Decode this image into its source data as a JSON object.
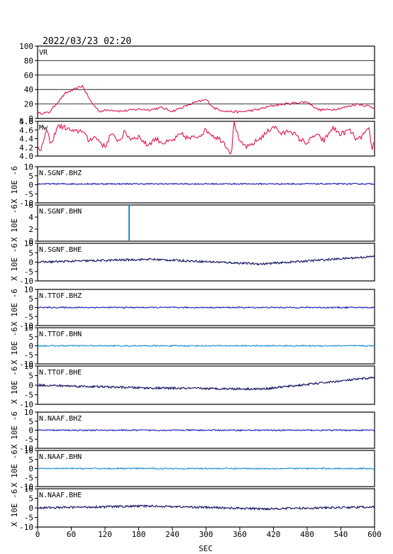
{
  "header": {
    "datetime": "2022/03/23  02:20"
  },
  "chart_data": {
    "type": "line",
    "xlabel": "SEC",
    "xlim": [
      0,
      600
    ],
    "xticks": [
      0,
      60,
      120,
      180,
      240,
      300,
      360,
      420,
      480,
      540,
      600
    ],
    "panels": [
      {
        "id": "vr",
        "label": "VR",
        "ylim": [
          0,
          100
        ],
        "yticks": [
          0,
          20,
          40,
          60,
          80,
          100
        ],
        "grid": true,
        "color": "#e0144c",
        "series": [
          {
            "x": 0,
            "y": 7
          },
          {
            "x": 20,
            "y": 8
          },
          {
            "x": 35,
            "y": 22
          },
          {
            "x": 50,
            "y": 35
          },
          {
            "x": 65,
            "y": 40
          },
          {
            "x": 80,
            "y": 45
          },
          {
            "x": 95,
            "y": 23
          },
          {
            "x": 110,
            "y": 10
          },
          {
            "x": 130,
            "y": 12
          },
          {
            "x": 150,
            "y": 10
          },
          {
            "x": 180,
            "y": 13
          },
          {
            "x": 200,
            "y": 12
          },
          {
            "x": 220,
            "y": 15
          },
          {
            "x": 240,
            "y": 10
          },
          {
            "x": 260,
            "y": 16
          },
          {
            "x": 280,
            "y": 22
          },
          {
            "x": 300,
            "y": 26
          },
          {
            "x": 315,
            "y": 14
          },
          {
            "x": 335,
            "y": 10
          },
          {
            "x": 360,
            "y": 9
          },
          {
            "x": 390,
            "y": 12
          },
          {
            "x": 420,
            "y": 18
          },
          {
            "x": 440,
            "y": 20
          },
          {
            "x": 465,
            "y": 22
          },
          {
            "x": 480,
            "y": 23
          },
          {
            "x": 500,
            "y": 12
          },
          {
            "x": 520,
            "y": 12
          },
          {
            "x": 545,
            "y": 15
          },
          {
            "x": 570,
            "y": 20
          },
          {
            "x": 590,
            "y": 17
          },
          {
            "x": 600,
            "y": 14
          }
        ]
      },
      {
        "id": "mw",
        "label": "Mw",
        "ylim": [
          4.0,
          4.8
        ],
        "yticks": [
          4.0,
          4.2,
          4.4,
          4.6,
          4.8
        ],
        "ytick_labels": [
          "4.0",
          "4.2",
          "4.4",
          "4.6",
          "4.8"
        ],
        "extra_tick_label": "5.0",
        "grid": false,
        "color": "#e0144c",
        "series": [
          {
            "x": 0,
            "y": 4.3
          },
          {
            "x": 5,
            "y": 4.05
          },
          {
            "x": 15,
            "y": 4.6
          },
          {
            "x": 25,
            "y": 4.25
          },
          {
            "x": 35,
            "y": 4.7
          },
          {
            "x": 50,
            "y": 4.65
          },
          {
            "x": 65,
            "y": 4.55
          },
          {
            "x": 80,
            "y": 4.6
          },
          {
            "x": 90,
            "y": 4.35
          },
          {
            "x": 100,
            "y": 4.45
          },
          {
            "x": 110,
            "y": 4.35
          },
          {
            "x": 120,
            "y": 4.2
          },
          {
            "x": 130,
            "y": 4.5
          },
          {
            "x": 145,
            "y": 4.35
          },
          {
            "x": 155,
            "y": 4.55
          },
          {
            "x": 165,
            "y": 4.4
          },
          {
            "x": 180,
            "y": 4.45
          },
          {
            "x": 195,
            "y": 4.25
          },
          {
            "x": 210,
            "y": 4.4
          },
          {
            "x": 225,
            "y": 4.3
          },
          {
            "x": 240,
            "y": 4.35
          },
          {
            "x": 255,
            "y": 4.5
          },
          {
            "x": 270,
            "y": 4.4
          },
          {
            "x": 285,
            "y": 4.45
          },
          {
            "x": 300,
            "y": 4.6
          },
          {
            "x": 315,
            "y": 4.45
          },
          {
            "x": 330,
            "y": 4.35
          },
          {
            "x": 345,
            "y": 4.05
          },
          {
            "x": 350,
            "y": 4.8
          },
          {
            "x": 360,
            "y": 4.3
          },
          {
            "x": 375,
            "y": 4.2
          },
          {
            "x": 390,
            "y": 4.35
          },
          {
            "x": 405,
            "y": 4.5
          },
          {
            "x": 420,
            "y": 4.7
          },
          {
            "x": 435,
            "y": 4.5
          },
          {
            "x": 450,
            "y": 4.6
          },
          {
            "x": 465,
            "y": 4.4
          },
          {
            "x": 480,
            "y": 4.3
          },
          {
            "x": 495,
            "y": 4.5
          },
          {
            "x": 510,
            "y": 4.35
          },
          {
            "x": 525,
            "y": 4.65
          },
          {
            "x": 540,
            "y": 4.5
          },
          {
            "x": 555,
            "y": 4.6
          },
          {
            "x": 570,
            "y": 4.35
          },
          {
            "x": 580,
            "y": 4.5
          },
          {
            "x": 590,
            "y": 4.6
          },
          {
            "x": 595,
            "y": 4.15
          },
          {
            "x": 600,
            "y": 4.35
          }
        ]
      },
      {
        "id": "sgnf-bhz",
        "label": "N.SGNF.BHZ",
        "ylabel": "X 10E -6",
        "ylim": [
          -10,
          10
        ],
        "yticks": [
          -10,
          -5,
          0,
          5,
          10
        ],
        "color": "#1a1ab8",
        "trace": "flat",
        "series": [
          {
            "x": 0,
            "y": 0.5
          },
          {
            "x": 600,
            "y": 0.5
          }
        ]
      },
      {
        "id": "sgnf-bhn",
        "label": "N.SGNF.BHN",
        "ylabel": "X 10E -6",
        "ylim": [
          0,
          6
        ],
        "yticks": [
          0,
          2,
          4,
          6
        ],
        "color": "#1a8ad4",
        "trace": "spike",
        "series": [
          {
            "x": 163,
            "y": 0
          },
          {
            "x": 163,
            "y": 6
          }
        ]
      },
      {
        "id": "sgnf-bhe",
        "label": "N.SGNF.BHE",
        "ylabel": "X 10E -6",
        "ylim": [
          -10,
          10
        ],
        "yticks": [
          -10,
          -5,
          0,
          5,
          10
        ],
        "color": "#0d0d5e",
        "trace": "wander",
        "series": [
          {
            "x": 0,
            "y": 0
          },
          {
            "x": 200,
            "y": 1.5
          },
          {
            "x": 400,
            "y": -1
          },
          {
            "x": 600,
            "y": 3
          }
        ]
      },
      {
        "id": "ttof-bhz",
        "label": "N.TTOF.BHZ",
        "ylabel": "X 10E -6",
        "ylim": [
          -10,
          10
        ],
        "yticks": [
          -10,
          -5,
          0,
          5,
          10
        ],
        "color": "#1a1ab8",
        "trace": "flat",
        "series": [
          {
            "x": 0,
            "y": 0
          },
          {
            "x": 600,
            "y": 0
          }
        ]
      },
      {
        "id": "ttof-bhn",
        "label": "N.TTOF.BHN",
        "ylabel": "X 10E -6",
        "ylim": [
          -10,
          10
        ],
        "yticks": [
          -10,
          -5,
          0,
          5,
          10
        ],
        "color": "#1a8ad4",
        "trace": "flat",
        "series": [
          {
            "x": 0,
            "y": 0
          },
          {
            "x": 600,
            "y": 0
          }
        ]
      },
      {
        "id": "ttof-bhe",
        "label": "N.TTOF.BHE",
        "ylabel": "X 10E -6",
        "ylim": [
          -10,
          10
        ],
        "yticks": [
          -10,
          -5,
          0,
          5,
          10
        ],
        "color": "#0d0d5e",
        "trace": "wander",
        "series": [
          {
            "x": 0,
            "y": 0
          },
          {
            "x": 200,
            "y": -1.5
          },
          {
            "x": 400,
            "y": -2
          },
          {
            "x": 600,
            "y": 4
          }
        ]
      },
      {
        "id": "naaf-bhz",
        "label": "N.NAAF.BHZ",
        "ylabel": "X 10E -6",
        "ylim": [
          -10,
          10
        ],
        "yticks": [
          -10,
          -5,
          0,
          5,
          10
        ],
        "color": "#1a1ab8",
        "trace": "flat",
        "series": [
          {
            "x": 0,
            "y": 0
          },
          {
            "x": 600,
            "y": 0
          }
        ]
      },
      {
        "id": "naaf-bhn",
        "label": "N.NAAF.BHN",
        "ylabel": "X 10E -6",
        "ylim": [
          -10,
          10
        ],
        "yticks": [
          -10,
          -5,
          0,
          5,
          10
        ],
        "color": "#1a8ad4",
        "trace": "flat",
        "series": [
          {
            "x": 0,
            "y": 0
          },
          {
            "x": 600,
            "y": 0
          }
        ]
      },
      {
        "id": "naaf-bhe",
        "label": "N.NAAF.BHE",
        "ylabel": "X 10E -6",
        "ylim": [
          -10,
          10
        ],
        "yticks": [
          -10,
          -5,
          0,
          5,
          10
        ],
        "color": "#0d0d5e",
        "trace": "wander",
        "series": [
          {
            "x": 0,
            "y": 0
          },
          {
            "x": 200,
            "y": 1
          },
          {
            "x": 400,
            "y": -0.5
          },
          {
            "x": 600,
            "y": 0.5
          }
        ]
      }
    ]
  }
}
